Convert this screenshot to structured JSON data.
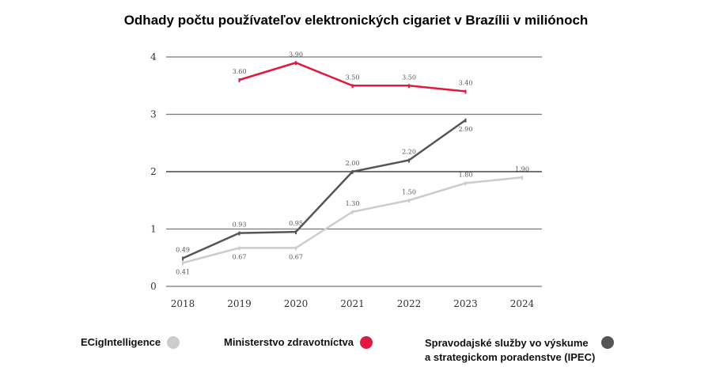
{
  "chart_data": {
    "type": "line",
    "title": "Odhady počtu používateľov elektronických cigariet v Brazílii v miliónoch",
    "categories": [
      "2018",
      "2019",
      "2020",
      "2021",
      "2022",
      "2023",
      "2024"
    ],
    "ylim": [
      0,
      4
    ],
    "yticks": [
      "0",
      "1",
      "2",
      "3",
      "4"
    ],
    "grid": true,
    "legend_placement": "bottom",
    "series": [
      {
        "name": "ECigIntelligence",
        "color": "#cccccc",
        "values": [
          0.41,
          0.67,
          0.67,
          1.3,
          1.5,
          1.8,
          1.9
        ],
        "labels": [
          "0.41",
          "0.67",
          "0.67",
          "1.30",
          "1.50",
          "1.80",
          "1.90"
        ]
      },
      {
        "name": "Ministerstvo zdravotníctva",
        "color": "#e0193f",
        "values": [
          null,
          3.6,
          3.9,
          3.5,
          3.5,
          3.4,
          null
        ],
        "labels": [
          null,
          "3.60",
          "3.90",
          "3.50",
          "3.50",
          "3.40",
          null
        ]
      },
      {
        "name": "Spravodajské služby vo výskume a strategickom poradenstve (IPEC)",
        "name_line1": "Spravodajské služby vo výskume",
        "name_line2": "a strategickom poradenstve (IPEC)",
        "color": "#555555",
        "values": [
          0.49,
          0.93,
          0.95,
          2.0,
          2.2,
          2.9,
          null
        ],
        "labels": [
          "0.49",
          "0.93",
          "0.95",
          "2.00",
          "2.20",
          "2.90",
          null
        ]
      }
    ]
  }
}
